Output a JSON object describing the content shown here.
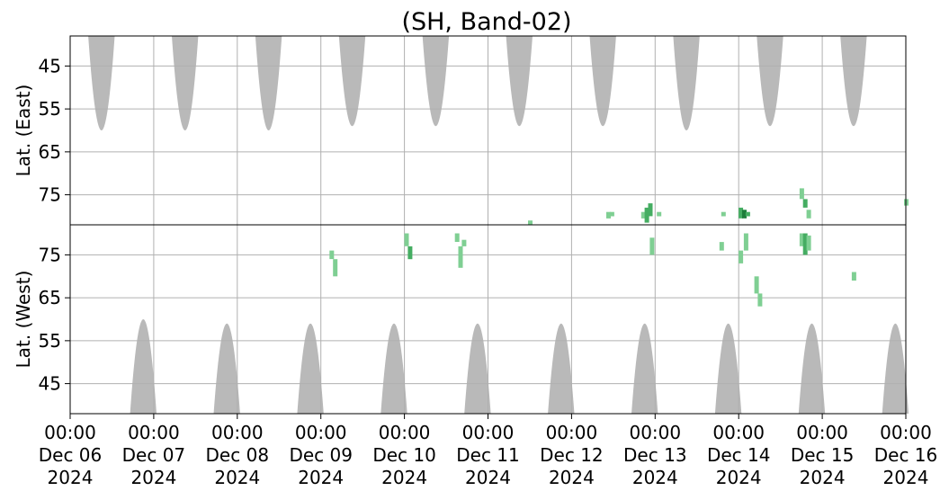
{
  "chart_data": {
    "type": "heatmap",
    "title": "(SH, Band-02)",
    "grid": true,
    "x_ticks": [
      {
        "time": "2024-12-06 00:00",
        "label": [
          "00:00",
          "Dec 06",
          "2024"
        ]
      },
      {
        "time": "2024-12-07 00:00",
        "label": [
          "00:00",
          "Dec 07",
          "2024"
        ]
      },
      {
        "time": "2024-12-08 00:00",
        "label": [
          "00:00",
          "Dec 08",
          "2024"
        ]
      },
      {
        "time": "2024-12-09 00:00",
        "label": [
          "00:00",
          "Dec 09",
          "2024"
        ]
      },
      {
        "time": "2024-12-10 00:00",
        "label": [
          "00:00",
          "Dec 10",
          "2024"
        ]
      },
      {
        "time": "2024-12-11 00:00",
        "label": [
          "00:00",
          "Dec 11",
          "2024"
        ]
      },
      {
        "time": "2024-12-12 00:00",
        "label": [
          "00:00",
          "Dec 12",
          "2024"
        ]
      },
      {
        "time": "2024-12-13 00:00",
        "label": [
          "00:00",
          "Dec 13",
          "2024"
        ]
      },
      {
        "time": "2024-12-14 00:00",
        "label": [
          "00:00",
          "Dec 14",
          "2024"
        ]
      },
      {
        "time": "2024-12-15 00:00",
        "label": [
          "00:00",
          "Dec 15",
          "2024"
        ]
      },
      {
        "time": "2024-12-16 00:00",
        "label": [
          "00:00",
          "Dec 16",
          "2024"
        ]
      }
    ],
    "xlim": [
      "2024-12-06 00:00",
      "2024-12-16 00:00"
    ],
    "panels": [
      {
        "id": "east",
        "ylabel": "Lat. (East)",
        "ylim": [
          38,
          82
        ],
        "yticks": [
          45,
          55,
          65,
          75
        ],
        "y_increases": "down",
        "no_data_regions": [
          {
            "center": "2024-12-06 09:00",
            "half_width_hours": 3.8,
            "lat_start": 38,
            "lat_end": 60
          },
          {
            "center": "2024-12-07 09:00",
            "half_width_hours": 3.8,
            "lat_start": 38,
            "lat_end": 60
          },
          {
            "center": "2024-12-08 09:00",
            "half_width_hours": 3.8,
            "lat_start": 38,
            "lat_end": 60
          },
          {
            "center": "2024-12-09 09:00",
            "half_width_hours": 3.8,
            "lat_start": 38,
            "lat_end": 59
          },
          {
            "center": "2024-12-10 09:00",
            "half_width_hours": 3.8,
            "lat_start": 38,
            "lat_end": 59
          },
          {
            "center": "2024-12-11 09:00",
            "half_width_hours": 3.8,
            "lat_start": 38,
            "lat_end": 59
          },
          {
            "center": "2024-12-12 09:00",
            "half_width_hours": 3.8,
            "lat_start": 38,
            "lat_end": 59
          },
          {
            "center": "2024-12-13 09:00",
            "half_width_hours": 3.8,
            "lat_start": 38,
            "lat_end": 60
          },
          {
            "center": "2024-12-14 09:00",
            "half_width_hours": 3.8,
            "lat_start": 38,
            "lat_end": 59
          },
          {
            "center": "2024-12-15 09:00",
            "half_width_hours": 3.8,
            "lat_start": 38,
            "lat_end": 59
          }
        ],
        "detections": [
          {
            "time": "2024-12-11 12:00",
            "lat_min": 81.0,
            "lat_max": 82.0,
            "level": 1
          },
          {
            "time": "2024-12-12 10:30",
            "lat_min": 79.0,
            "lat_max": 80.5,
            "level": 1
          },
          {
            "time": "2024-12-12 11:30",
            "lat_min": 79.0,
            "lat_max": 80.0,
            "level": 1
          },
          {
            "time": "2024-12-12 20:30",
            "lat_min": 79.0,
            "lat_max": 80.5,
            "level": 1
          },
          {
            "time": "2024-12-12 21:30",
            "lat_min": 78.0,
            "lat_max": 81.5,
            "level": 2
          },
          {
            "time": "2024-12-12 22:30",
            "lat_min": 77.0,
            "lat_max": 80.0,
            "level": 2
          },
          {
            "time": "2024-12-13 01:00",
            "lat_min": 79.0,
            "lat_max": 80.0,
            "level": 1
          },
          {
            "time": "2024-12-13 19:30",
            "lat_min": 79.0,
            "lat_max": 80.0,
            "level": 1
          },
          {
            "time": "2024-12-14 00:30",
            "lat_min": 78.0,
            "lat_max": 80.5,
            "level": 2
          },
          {
            "time": "2024-12-14 01:30",
            "lat_min": 78.5,
            "lat_max": 80.5,
            "level": 3
          },
          {
            "time": "2024-12-14 02:30",
            "lat_min": 79.0,
            "lat_max": 80.0,
            "level": 2
          },
          {
            "time": "2024-12-14 18:00",
            "lat_min": 73.5,
            "lat_max": 76.0,
            "level": 1
          },
          {
            "time": "2024-12-14 19:00",
            "lat_min": 76.0,
            "lat_max": 78.0,
            "level": 2
          },
          {
            "time": "2024-12-14 20:00",
            "lat_min": 78.5,
            "lat_max": 80.5,
            "level": 1
          },
          {
            "time": "2024-12-16 00:00",
            "lat_min": 76.0,
            "lat_max": 77.5,
            "level": 1
          }
        ]
      },
      {
        "id": "west",
        "ylabel": "Lat. (West)",
        "ylim": [
          38,
          82
        ],
        "yticks": [
          45,
          55,
          65,
          75
        ],
        "y_increases": "up",
        "no_data_regions": [
          {
            "center": "2024-12-06 21:00",
            "half_width_hours": 3.8,
            "lat_start": 38,
            "lat_end": 60
          },
          {
            "center": "2024-12-07 21:00",
            "half_width_hours": 3.8,
            "lat_start": 38,
            "lat_end": 59
          },
          {
            "center": "2024-12-08 21:00",
            "half_width_hours": 3.8,
            "lat_start": 38,
            "lat_end": 59
          },
          {
            "center": "2024-12-09 21:00",
            "half_width_hours": 3.8,
            "lat_start": 38,
            "lat_end": 59
          },
          {
            "center": "2024-12-10 21:00",
            "half_width_hours": 3.8,
            "lat_start": 38,
            "lat_end": 59
          },
          {
            "center": "2024-12-11 21:00",
            "half_width_hours": 3.8,
            "lat_start": 38,
            "lat_end": 59
          },
          {
            "center": "2024-12-12 21:00",
            "half_width_hours": 3.8,
            "lat_start": 38,
            "lat_end": 59
          },
          {
            "center": "2024-12-13 21:00",
            "half_width_hours": 3.8,
            "lat_start": 38,
            "lat_end": 59
          },
          {
            "center": "2024-12-14 21:00",
            "half_width_hours": 3.8,
            "lat_start": 38,
            "lat_end": 59
          },
          {
            "center": "2024-12-15 21:00",
            "half_width_hours": 3.8,
            "lat_start": 38,
            "lat_end": 59
          }
        ],
        "detections": [
          {
            "time": "2024-12-09 03:00",
            "lat_min": 74.0,
            "lat_max": 76.0,
            "level": 1
          },
          {
            "time": "2024-12-09 04:00",
            "lat_min": 70.0,
            "lat_max": 74.0,
            "level": 1
          },
          {
            "time": "2024-12-10 00:30",
            "lat_min": 77.0,
            "lat_max": 80.0,
            "level": 1
          },
          {
            "time": "2024-12-10 01:30",
            "lat_min": 74.0,
            "lat_max": 77.0,
            "level": 2
          },
          {
            "time": "2024-12-10 15:00",
            "lat_min": 78.0,
            "lat_max": 80.0,
            "level": 1
          },
          {
            "time": "2024-12-10 16:00",
            "lat_min": 72.0,
            "lat_max": 77.0,
            "level": 1
          },
          {
            "time": "2024-12-10 17:00",
            "lat_min": 77.0,
            "lat_max": 78.5,
            "level": 1
          },
          {
            "time": "2024-12-12 23:00",
            "lat_min": 75.0,
            "lat_max": 79.0,
            "level": 1
          },
          {
            "time": "2024-12-13 19:00",
            "lat_min": 76.0,
            "lat_max": 78.0,
            "level": 1
          },
          {
            "time": "2024-12-14 00:30",
            "lat_min": 73.0,
            "lat_max": 76.0,
            "level": 1
          },
          {
            "time": "2024-12-14 02:00",
            "lat_min": 76.0,
            "lat_max": 80.0,
            "level": 1
          },
          {
            "time": "2024-12-14 05:00",
            "lat_min": 66.0,
            "lat_max": 70.0,
            "level": 1
          },
          {
            "time": "2024-12-14 06:00",
            "lat_min": 63.0,
            "lat_max": 66.0,
            "level": 1
          },
          {
            "time": "2024-12-14 18:00",
            "lat_min": 77.0,
            "lat_max": 80.0,
            "level": 1
          },
          {
            "time": "2024-12-14 19:00",
            "lat_min": 75.0,
            "lat_max": 80.0,
            "level": 2
          },
          {
            "time": "2024-12-14 20:00",
            "lat_min": 76.0,
            "lat_max": 79.5,
            "level": 1
          },
          {
            "time": "2024-12-15 09:00",
            "lat_min": 69.0,
            "lat_max": 71.0,
            "level": 1
          }
        ]
      }
    ],
    "colors": {
      "no_data": "#b9b9b9",
      "detection_levels": [
        "#7fcf93",
        "#45ad62",
        "#1e7d3b"
      ],
      "grid": "#b0b0b0",
      "axis": "#000000",
      "background": "#ffffff"
    }
  }
}
